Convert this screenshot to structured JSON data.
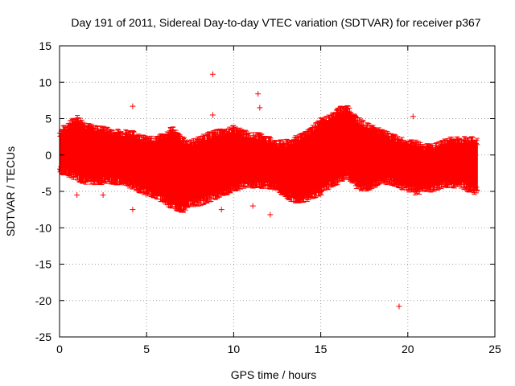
{
  "chart_data": {
    "type": "scatter",
    "title": "Day 191 of 2011, Sidereal Day-to-day VTEC variation (SDTVAR) for receiver p367",
    "xlabel": "GPS time / hours",
    "ylabel": "SDTVAR / TECUs",
    "xlim": [
      0,
      25
    ],
    "ylim": [
      -25,
      15
    ],
    "xticks": [
      0,
      5,
      10,
      15,
      20,
      25
    ],
    "yticks": [
      15,
      10,
      5,
      0,
      -5,
      -10,
      -15,
      -20,
      -25
    ],
    "grid": true,
    "marker": "+",
    "color": "#ff0000",
    "series": [
      {
        "name": "SDTVAR",
        "band": {
          "x": [
            0,
            0.5,
            1,
            1.5,
            2,
            2.5,
            3,
            3.5,
            4,
            4.5,
            5,
            5.5,
            6,
            6.5,
            7,
            7.5,
            8,
            8.5,
            9,
            9.5,
            10,
            10.5,
            11,
            11.5,
            12,
            12.5,
            13,
            13.5,
            14,
            14.5,
            15,
            15.5,
            16,
            16.5,
            17,
            17.5,
            18,
            18.5,
            19,
            19.5,
            20,
            20.5,
            21,
            21.5,
            22,
            22.5,
            23,
            23.5,
            24
          ],
          "upper": [
            3,
            4,
            5,
            4,
            3.5,
            3.5,
            3,
            3,
            3,
            2.5,
            2,
            2,
            2.5,
            3.5,
            2,
            1.5,
            2,
            2.5,
            3,
            3,
            3.5,
            3,
            2.5,
            2.5,
            2,
            1.5,
            1.5,
            2,
            2.5,
            3.5,
            4.5,
            5,
            6,
            6.5,
            5,
            4,
            3.5,
            3,
            2.5,
            2,
            1.5,
            1.5,
            1,
            1,
            1.5,
            2,
            2,
            2,
            1.8
          ],
          "lower": [
            -2,
            -2.5,
            -3,
            -3.5,
            -3.5,
            -3.5,
            -3.5,
            -3.5,
            -4,
            -4.5,
            -5,
            -5.5,
            -6,
            -7,
            -7.5,
            -6.5,
            -6.5,
            -6,
            -5.5,
            -5,
            -4.5,
            -4,
            -4,
            -4,
            -4,
            -4.5,
            -5.5,
            -6,
            -6,
            -5.5,
            -5,
            -4,
            -3.5,
            -2.5,
            -4,
            -4.5,
            -4,
            -3.5,
            -3.5,
            -4,
            -4.5,
            -5,
            -4.5,
            -4.5,
            -4,
            -4,
            -4,
            -4.5,
            -5
          ]
        },
        "outliers": [
          {
            "x": 1.0,
            "y": -5.5
          },
          {
            "x": 2.5,
            "y": -5.5
          },
          {
            "x": 4.2,
            "y": 6.7
          },
          {
            "x": 4.2,
            "y": -7.5
          },
          {
            "x": 8.8,
            "y": 11.1
          },
          {
            "x": 8.8,
            "y": 5.5
          },
          {
            "x": 11.4,
            "y": 8.4
          },
          {
            "x": 11.5,
            "y": 6.5
          },
          {
            "x": 12.1,
            "y": -8.2
          },
          {
            "x": 19.5,
            "y": -20.8
          },
          {
            "x": 20.3,
            "y": 5.3
          },
          {
            "x": 9.3,
            "y": -7.5
          },
          {
            "x": 11.1,
            "y": -7.0
          }
        ]
      }
    ]
  }
}
